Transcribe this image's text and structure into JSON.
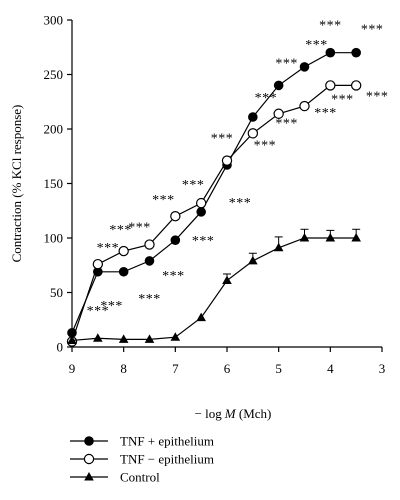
{
  "chart_data": {
    "type": "line",
    "ylabel": "Contraction (% KCl response)",
    "xlabel_prefix": "− log",
    "xlabel_var": "M",
    "xlabel_suffix": " (Mch)",
    "xlim": [
      9,
      3
    ],
    "ylim": [
      0,
      300
    ],
    "xticks": [
      9,
      8,
      7,
      6,
      5,
      4,
      3
    ],
    "yticks": [
      0,
      50,
      100,
      150,
      200,
      250,
      300
    ],
    "grid": false,
    "legend_position": "bottom-left",
    "x": [
      9,
      8.5,
      8,
      7.5,
      7,
      6.5,
      6,
      5.5,
      5,
      4.5,
      4,
      3.5
    ],
    "series": [
      {
        "name": "TNF + epithelium",
        "marker": "filled-circle",
        "color": "#000000",
        "values": [
          13,
          69,
          69,
          79,
          98,
          124,
          167,
          211,
          240,
          257,
          270,
          270
        ],
        "significance": [
          "",
          "***",
          "***",
          "***",
          "***",
          "***",
          "***",
          "***",
          "***",
          "***",
          "***",
          "***"
        ]
      },
      {
        "name": "TNF − epithelium",
        "marker": "open-circle",
        "color": "#000000",
        "values": [
          5,
          76,
          88,
          94,
          120,
          132,
          171,
          196,
          214,
          221,
          240,
          240
        ],
        "significance": [
          "",
          "***",
          "***",
          "***",
          "***",
          "***",
          "***",
          "***",
          "***",
          "***",
          "***",
          "***"
        ]
      },
      {
        "name": "Control",
        "marker": "filled-triangle",
        "color": "#000000",
        "values": [
          6,
          8,
          7,
          7,
          9,
          27,
          61,
          79,
          91,
          100,
          100,
          100
        ],
        "error": [
          0,
          0,
          0,
          0,
          0,
          0,
          6,
          7,
          10,
          8,
          7,
          8
        ]
      }
    ]
  }
}
